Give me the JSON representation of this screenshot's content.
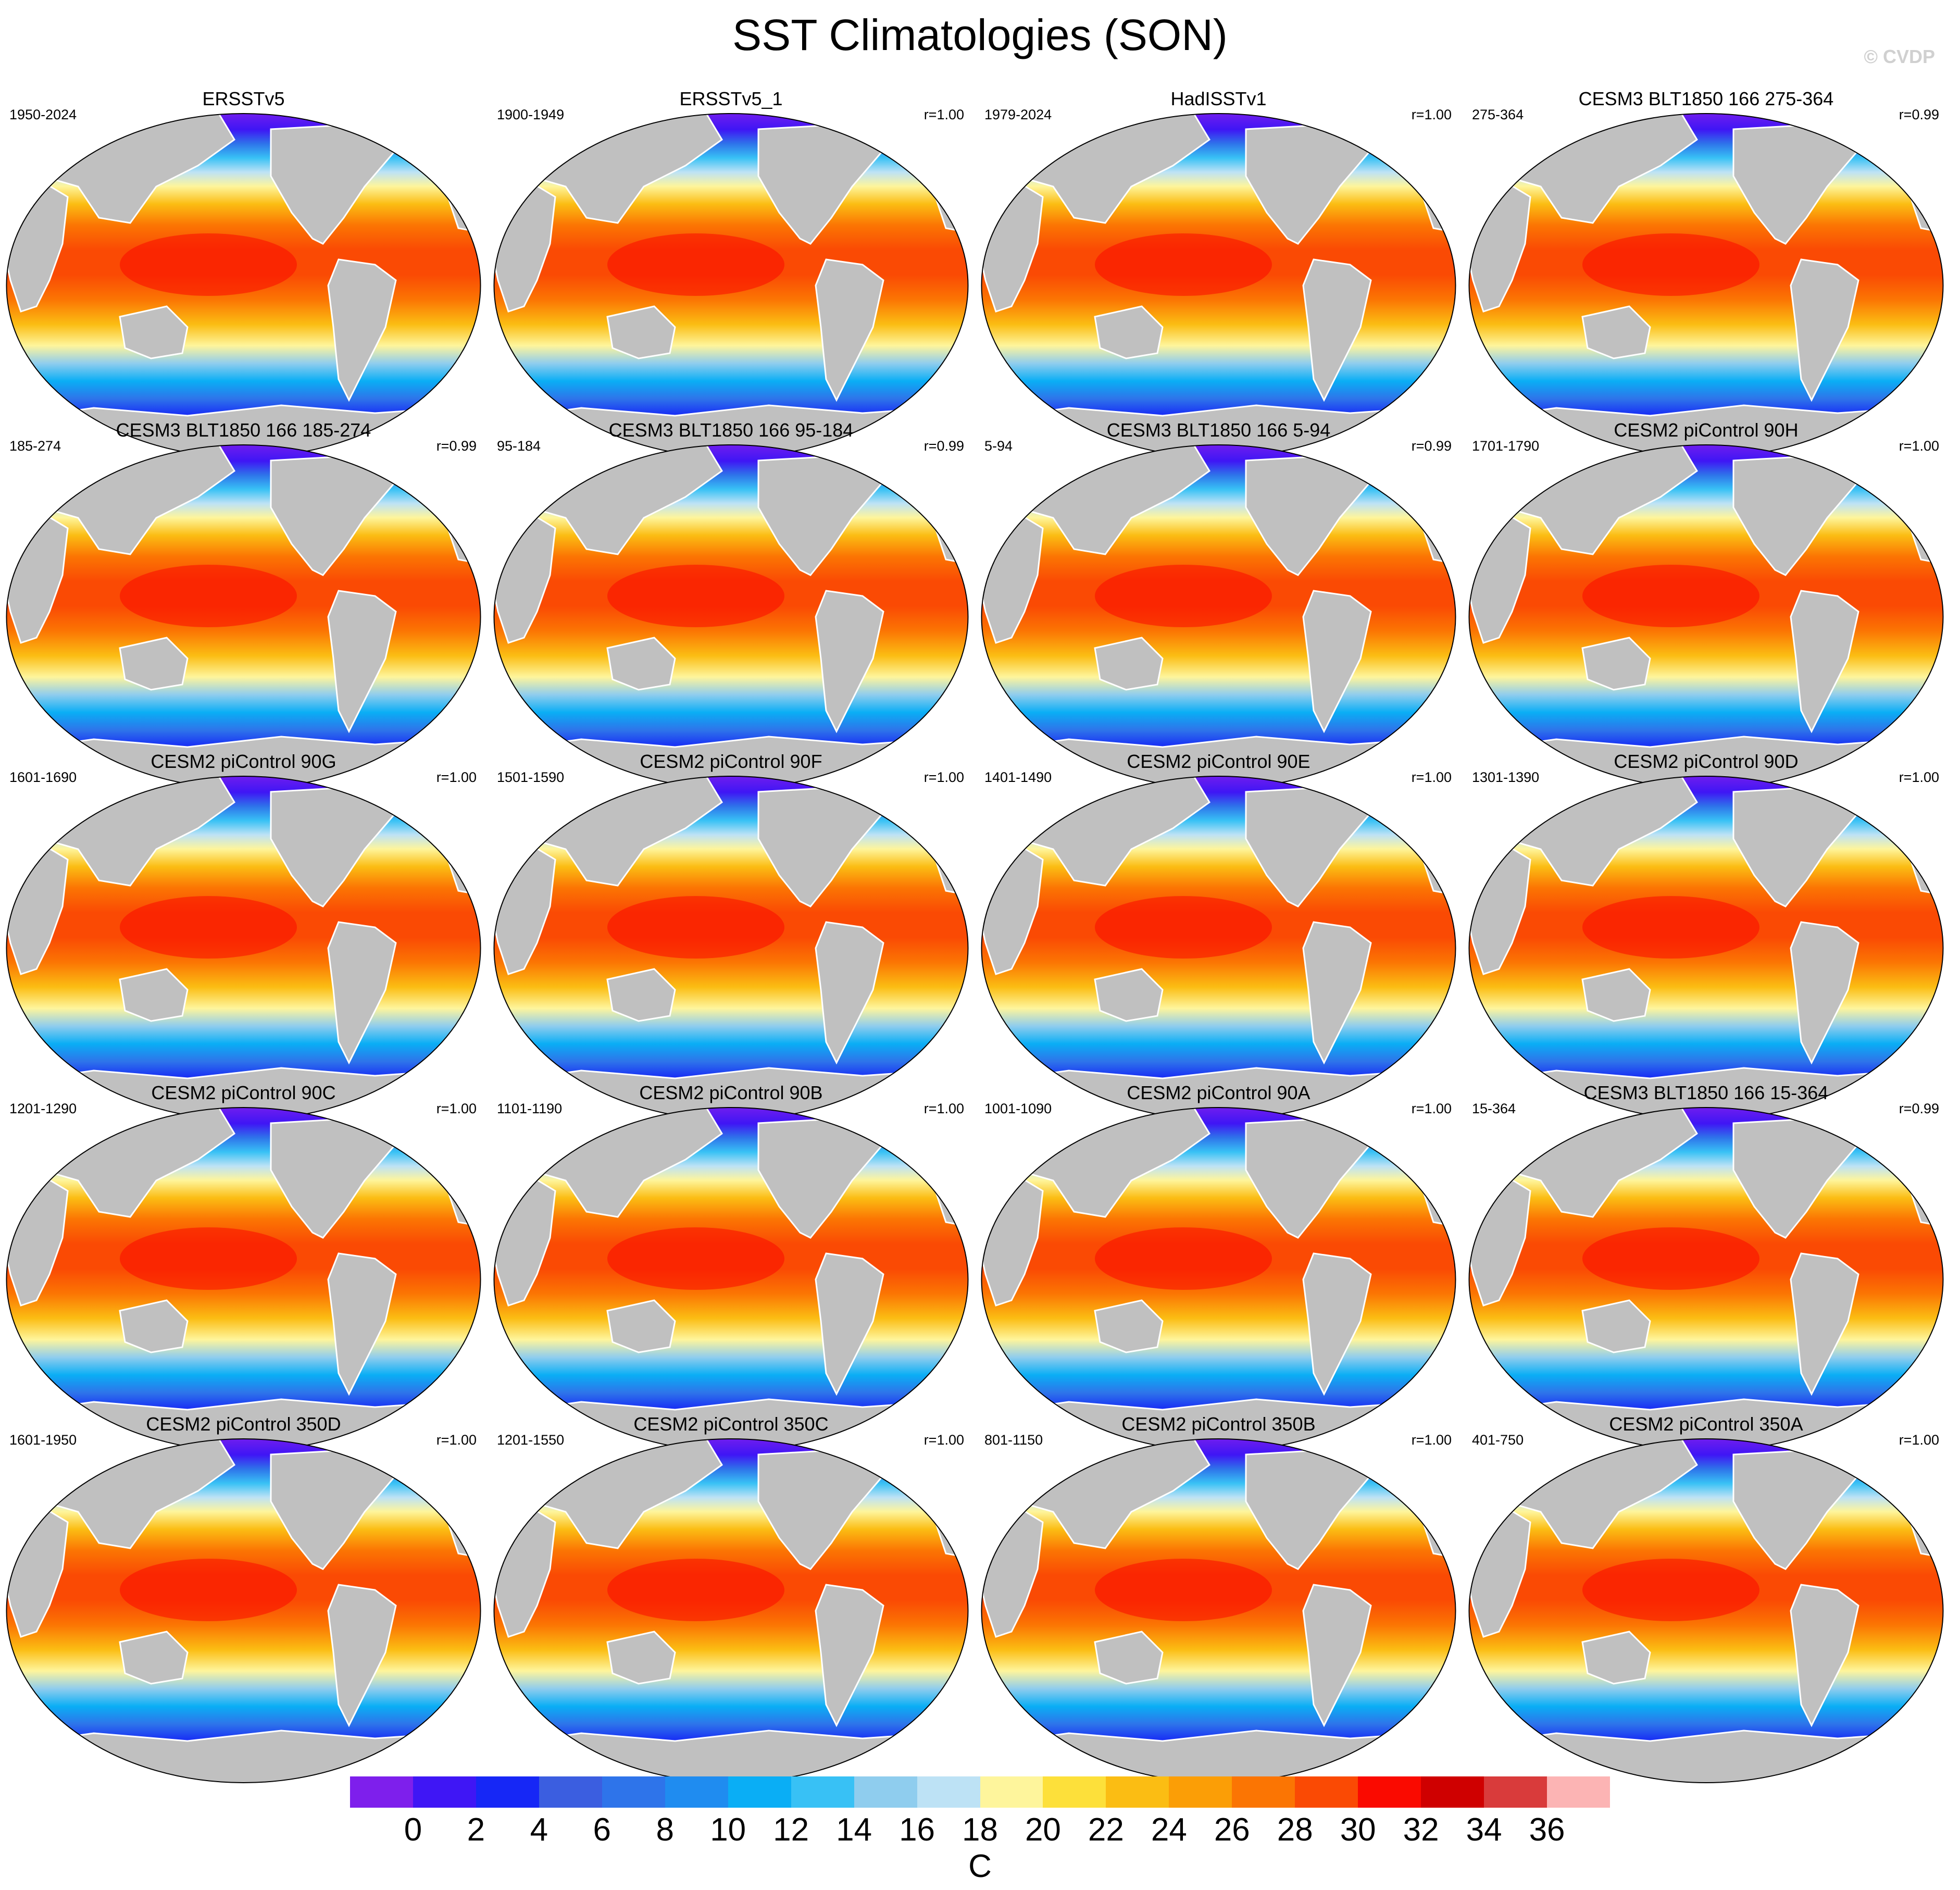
{
  "title": "SST Climatologies (SON)",
  "copyright": "© CVDP",
  "land_color": "#c0c0c0",
  "panels": [
    {
      "title": "ERSSTv5",
      "period": "1950-2024",
      "corr": ""
    },
    {
      "title": "ERSSTv5_1",
      "period": "1900-1949",
      "corr": "r=1.00"
    },
    {
      "title": "HadISSTv1",
      "period": "1979-2024",
      "corr": "r=1.00"
    },
    {
      "title": "CESM3 BLT1850 166 275-364",
      "period": "275-364",
      "corr": "r=0.99"
    },
    {
      "title": "CESM3 BLT1850 166 185-274",
      "period": "185-274",
      "corr": "r=0.99"
    },
    {
      "title": "CESM3 BLT1850 166 95-184",
      "period": "95-184",
      "corr": "r=0.99"
    },
    {
      "title": "CESM3 BLT1850 166 5-94",
      "period": "5-94",
      "corr": "r=0.99"
    },
    {
      "title": "CESM2 piControl 90H",
      "period": "1701-1790",
      "corr": "r=1.00"
    },
    {
      "title": "CESM2 piControl 90G",
      "period": "1601-1690",
      "corr": "r=1.00"
    },
    {
      "title": "CESM2 piControl 90F",
      "period": "1501-1590",
      "corr": "r=1.00"
    },
    {
      "title": "CESM2 piControl 90E",
      "period": "1401-1490",
      "corr": "r=1.00"
    },
    {
      "title": "CESM2 piControl 90D",
      "period": "1301-1390",
      "corr": "r=1.00"
    },
    {
      "title": "CESM2 piControl 90C",
      "period": "1201-1290",
      "corr": "r=1.00"
    },
    {
      "title": "CESM2 piControl 90B",
      "period": "1101-1190",
      "corr": "r=1.00"
    },
    {
      "title": "CESM2 piControl 90A",
      "period": "1001-1090",
      "corr": "r=1.00"
    },
    {
      "title": "CESM3 BLT1850 166 15-364",
      "period": "15-364",
      "corr": "r=0.99"
    },
    {
      "title": "CESM2 piControl 350D",
      "period": "1601-1950",
      "corr": "r=1.00"
    },
    {
      "title": "CESM2 piControl 350C",
      "period": "1201-1550",
      "corr": "r=1.00"
    },
    {
      "title": "CESM2 piControl 350B",
      "period": "801-1150",
      "corr": "r=1.00"
    },
    {
      "title": "CESM2 piControl 350A",
      "period": "401-750",
      "corr": "r=1.00"
    }
  ],
  "colorbar": {
    "colors": [
      "#7e1fec",
      "#3f16f5",
      "#1627f6",
      "#3b5ee0",
      "#2e74ea",
      "#1f8cf0",
      "#0aaef5",
      "#38c1f5",
      "#8fcdee",
      "#bde2f5",
      "#fef59c",
      "#fde03a",
      "#fbbd13",
      "#fb9e06",
      "#fb7503",
      "#fa4a04",
      "#fa0a00",
      "#cf0000",
      "#d93b3b",
      "#fcb4b4"
    ],
    "ticks": [
      "0",
      "2",
      "4",
      "6",
      "8",
      "10",
      "12",
      "14",
      "16",
      "18",
      "20",
      "22",
      "24",
      "26",
      "28",
      "30",
      "32",
      "34",
      "36"
    ],
    "units": "C"
  }
}
